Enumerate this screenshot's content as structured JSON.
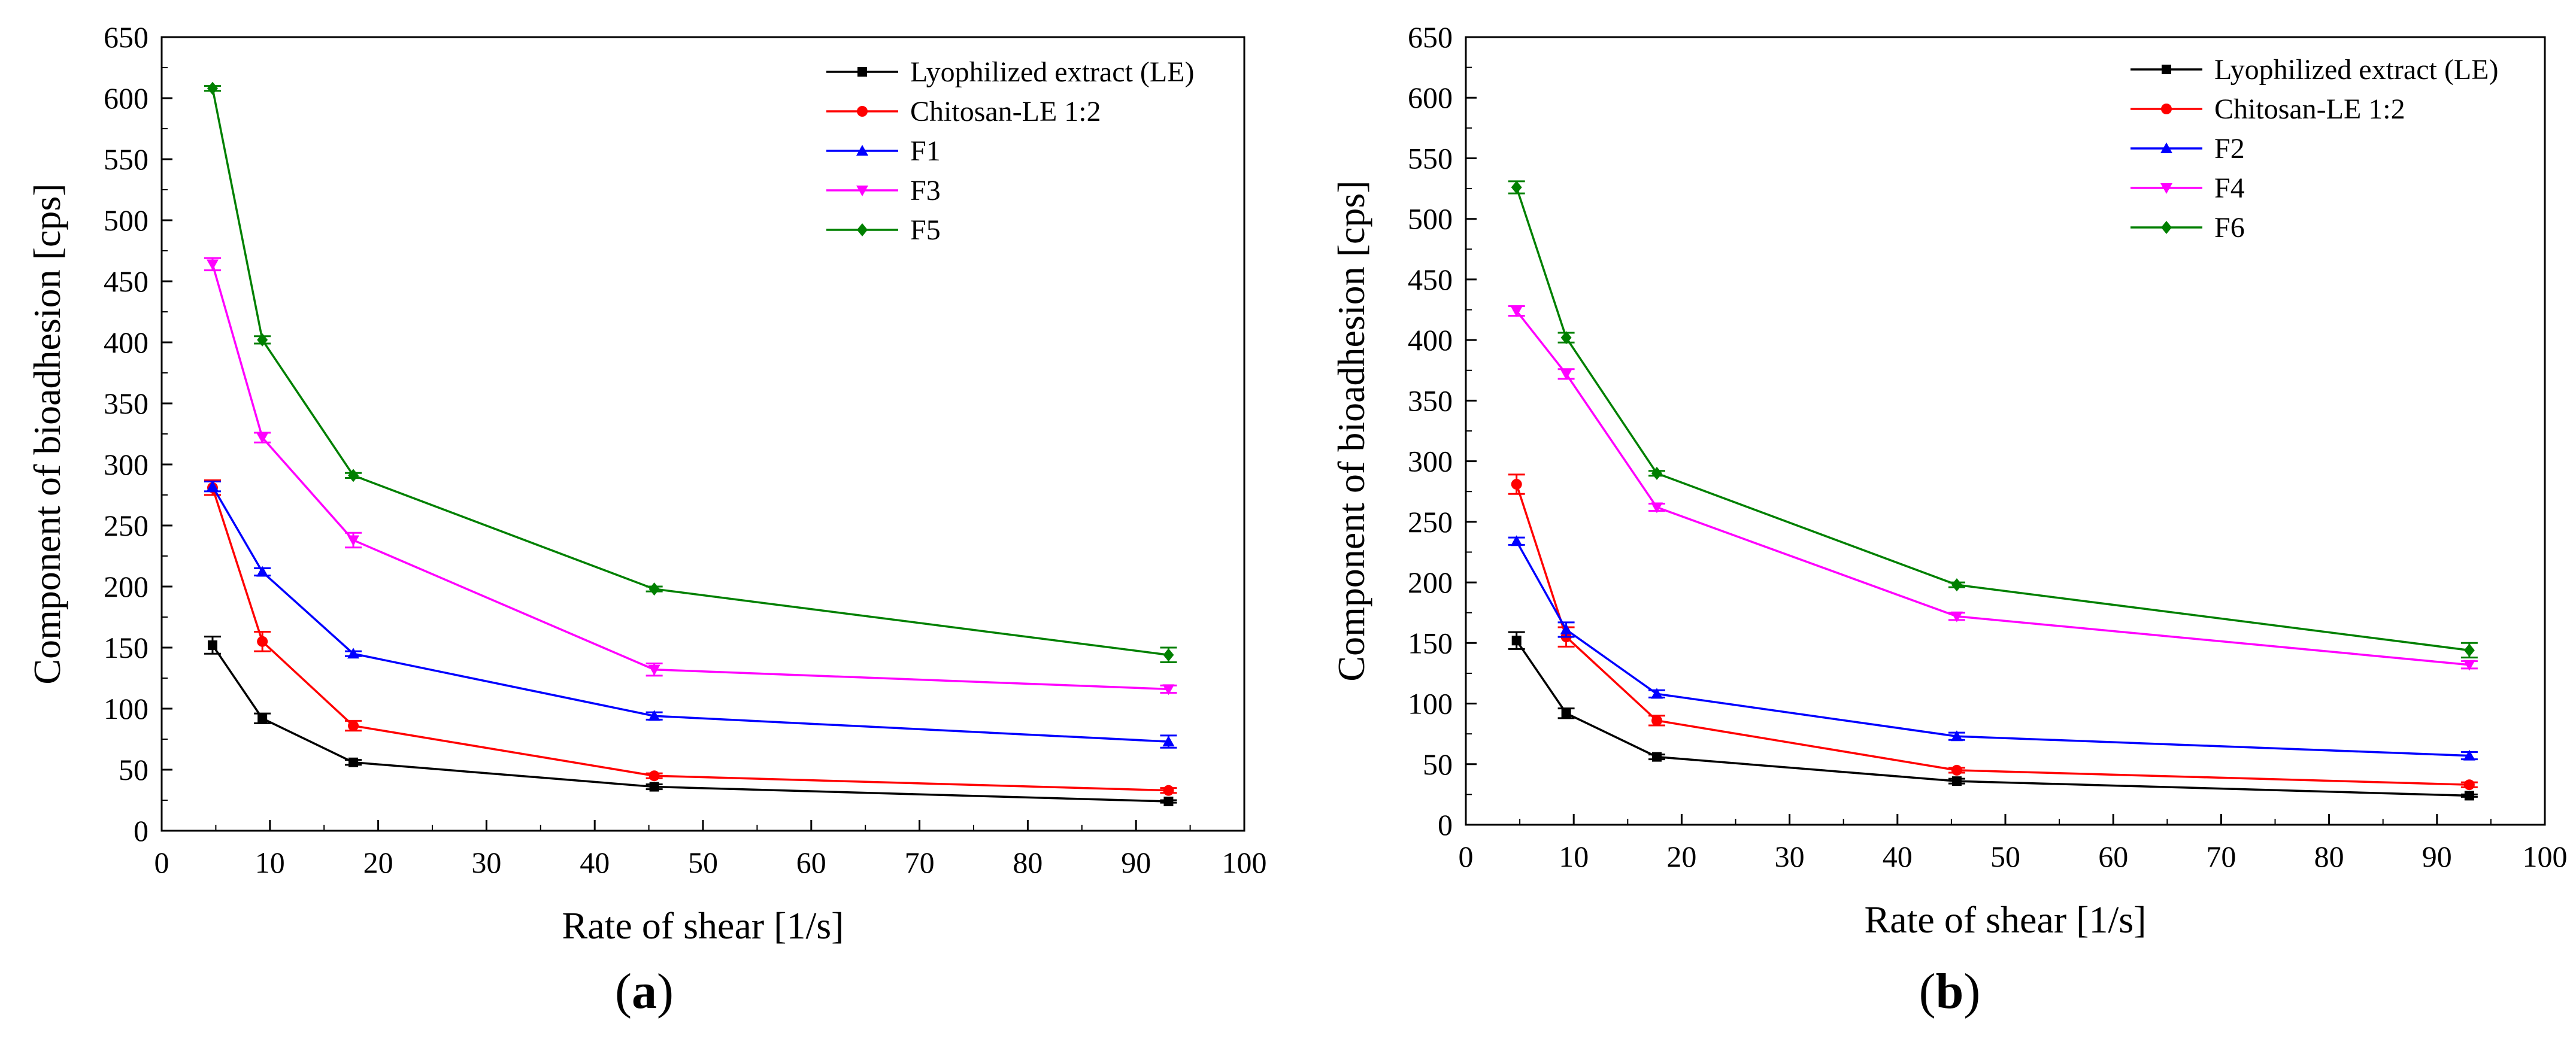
{
  "chart_data": [
    {
      "type": "line",
      "panel": "a",
      "title": "",
      "xlabel": "Rate of shear [1/s]",
      "ylabel": "Component of bioadhesion [cps]",
      "xlim": [
        0,
        100
      ],
      "ylim": [
        0,
        650
      ],
      "xticks": [
        0,
        10,
        20,
        30,
        40,
        50,
        60,
        70,
        80,
        90,
        100
      ],
      "yticks": [
        0,
        50,
        100,
        150,
        200,
        250,
        300,
        350,
        400,
        450,
        500,
        550,
        600,
        650
      ],
      "legend_position": "top-right",
      "x": [
        4.7,
        9.3,
        17.7,
        45.5,
        93.0
      ],
      "series": [
        {
          "name": "Lyophilized extract (LE)",
          "color": "#000000",
          "marker": "square",
          "values": [
            152,
            92,
            56,
            36,
            24
          ],
          "errors": [
            7,
            4,
            2,
            2,
            1
          ]
        },
        {
          "name": "Chitosan-LE 1:2",
          "color": "#ff0000",
          "marker": "circle",
          "values": [
            281,
            155,
            86,
            45,
            33
          ],
          "errors": [
            6,
            8,
            4,
            2,
            2
          ]
        },
        {
          "name": "F1",
          "color": "#0000ff",
          "marker": "triangle-up",
          "values": [
            282,
            212,
            145,
            94,
            73
          ],
          "errors": [
            4,
            3,
            2,
            3,
            5
          ]
        },
        {
          "name": "F3",
          "color": "#ff00ff",
          "marker": "triangle-down",
          "values": [
            464,
            322,
            238,
            132,
            116
          ],
          "errors": [
            5,
            4,
            6,
            5,
            3
          ]
        },
        {
          "name": "F5",
          "color": "#008000",
          "marker": "diamond",
          "values": [
            608,
            402,
            291,
            198,
            144
          ],
          "errors": [
            2,
            3,
            2,
            2,
            6
          ]
        }
      ]
    },
    {
      "type": "line",
      "panel": "b",
      "title": "",
      "xlabel": "Rate of shear [1/s]",
      "ylabel": "Component of bioadhesion [cps]",
      "xlim": [
        0,
        100
      ],
      "ylim": [
        0,
        650
      ],
      "xticks": [
        0,
        10,
        20,
        30,
        40,
        50,
        60,
        70,
        80,
        90,
        100
      ],
      "yticks": [
        0,
        50,
        100,
        150,
        200,
        250,
        300,
        350,
        400,
        450,
        500,
        550,
        600,
        650
      ],
      "legend_position": "top-right",
      "x": [
        4.7,
        9.3,
        17.7,
        45.5,
        93.0
      ],
      "series": [
        {
          "name": "Lyophilized extract (LE)",
          "color": "#000000",
          "marker": "square",
          "values": [
            152,
            92,
            56,
            36,
            24
          ],
          "errors": [
            7,
            4,
            2,
            2,
            1
          ]
        },
        {
          "name": "Chitosan-LE 1:2",
          "color": "#ff0000",
          "marker": "circle",
          "values": [
            281,
            155,
            86,
            45,
            33
          ],
          "errors": [
            8,
            8,
            4,
            2,
            2
          ]
        },
        {
          "name": "F2",
          "color": "#0000ff",
          "marker": "triangle-up",
          "values": [
            234,
            161,
            108,
            73,
            57
          ],
          "errors": [
            3,
            6,
            3,
            3,
            3
          ]
        },
        {
          "name": "F4",
          "color": "#ff00ff",
          "marker": "triangle-down",
          "values": [
            424,
            372,
            262,
            172,
            132
          ],
          "errors": [
            4,
            4,
            3,
            3,
            3
          ]
        },
        {
          "name": "F6",
          "color": "#008000",
          "marker": "diamond",
          "values": [
            526,
            402,
            290,
            198,
            144
          ],
          "errors": [
            5,
            4,
            2,
            2,
            6
          ]
        }
      ]
    }
  ],
  "panel_labels": {
    "a": "a",
    "b": "b"
  }
}
